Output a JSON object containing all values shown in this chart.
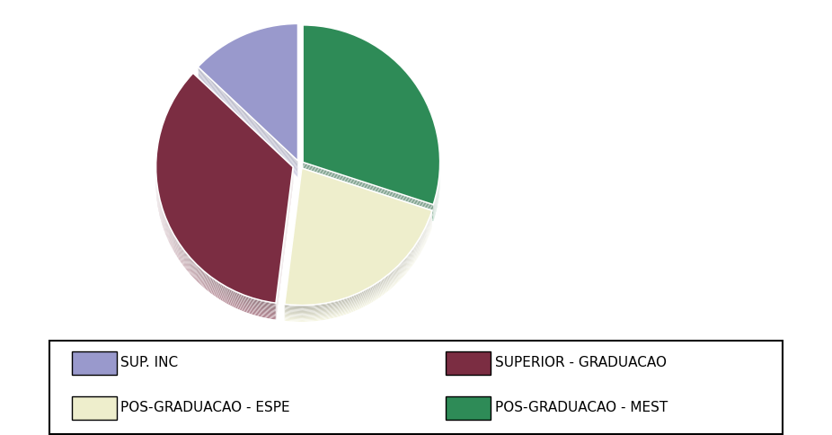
{
  "labels": [
    "SUP. INC",
    "SUPERIOR - GRADUACAO",
    "POS-GRADUACAO - ESPE",
    "POS-GRADUACAO - MEST"
  ],
  "values": [
    13,
    35,
    22,
    30
  ],
  "colors": [
    "#9999CC",
    "#7B2D42",
    "#EEEECC",
    "#2E8B57"
  ],
  "explode": [
    0.03,
    0.05,
    0.03,
    0.03
  ],
  "shadow": true,
  "startangle": 90,
  "background_color": "#ffffff",
  "legend_fontsize": 11,
  "figsize": [
    9.26,
    4.84
  ],
  "dpi": 100
}
